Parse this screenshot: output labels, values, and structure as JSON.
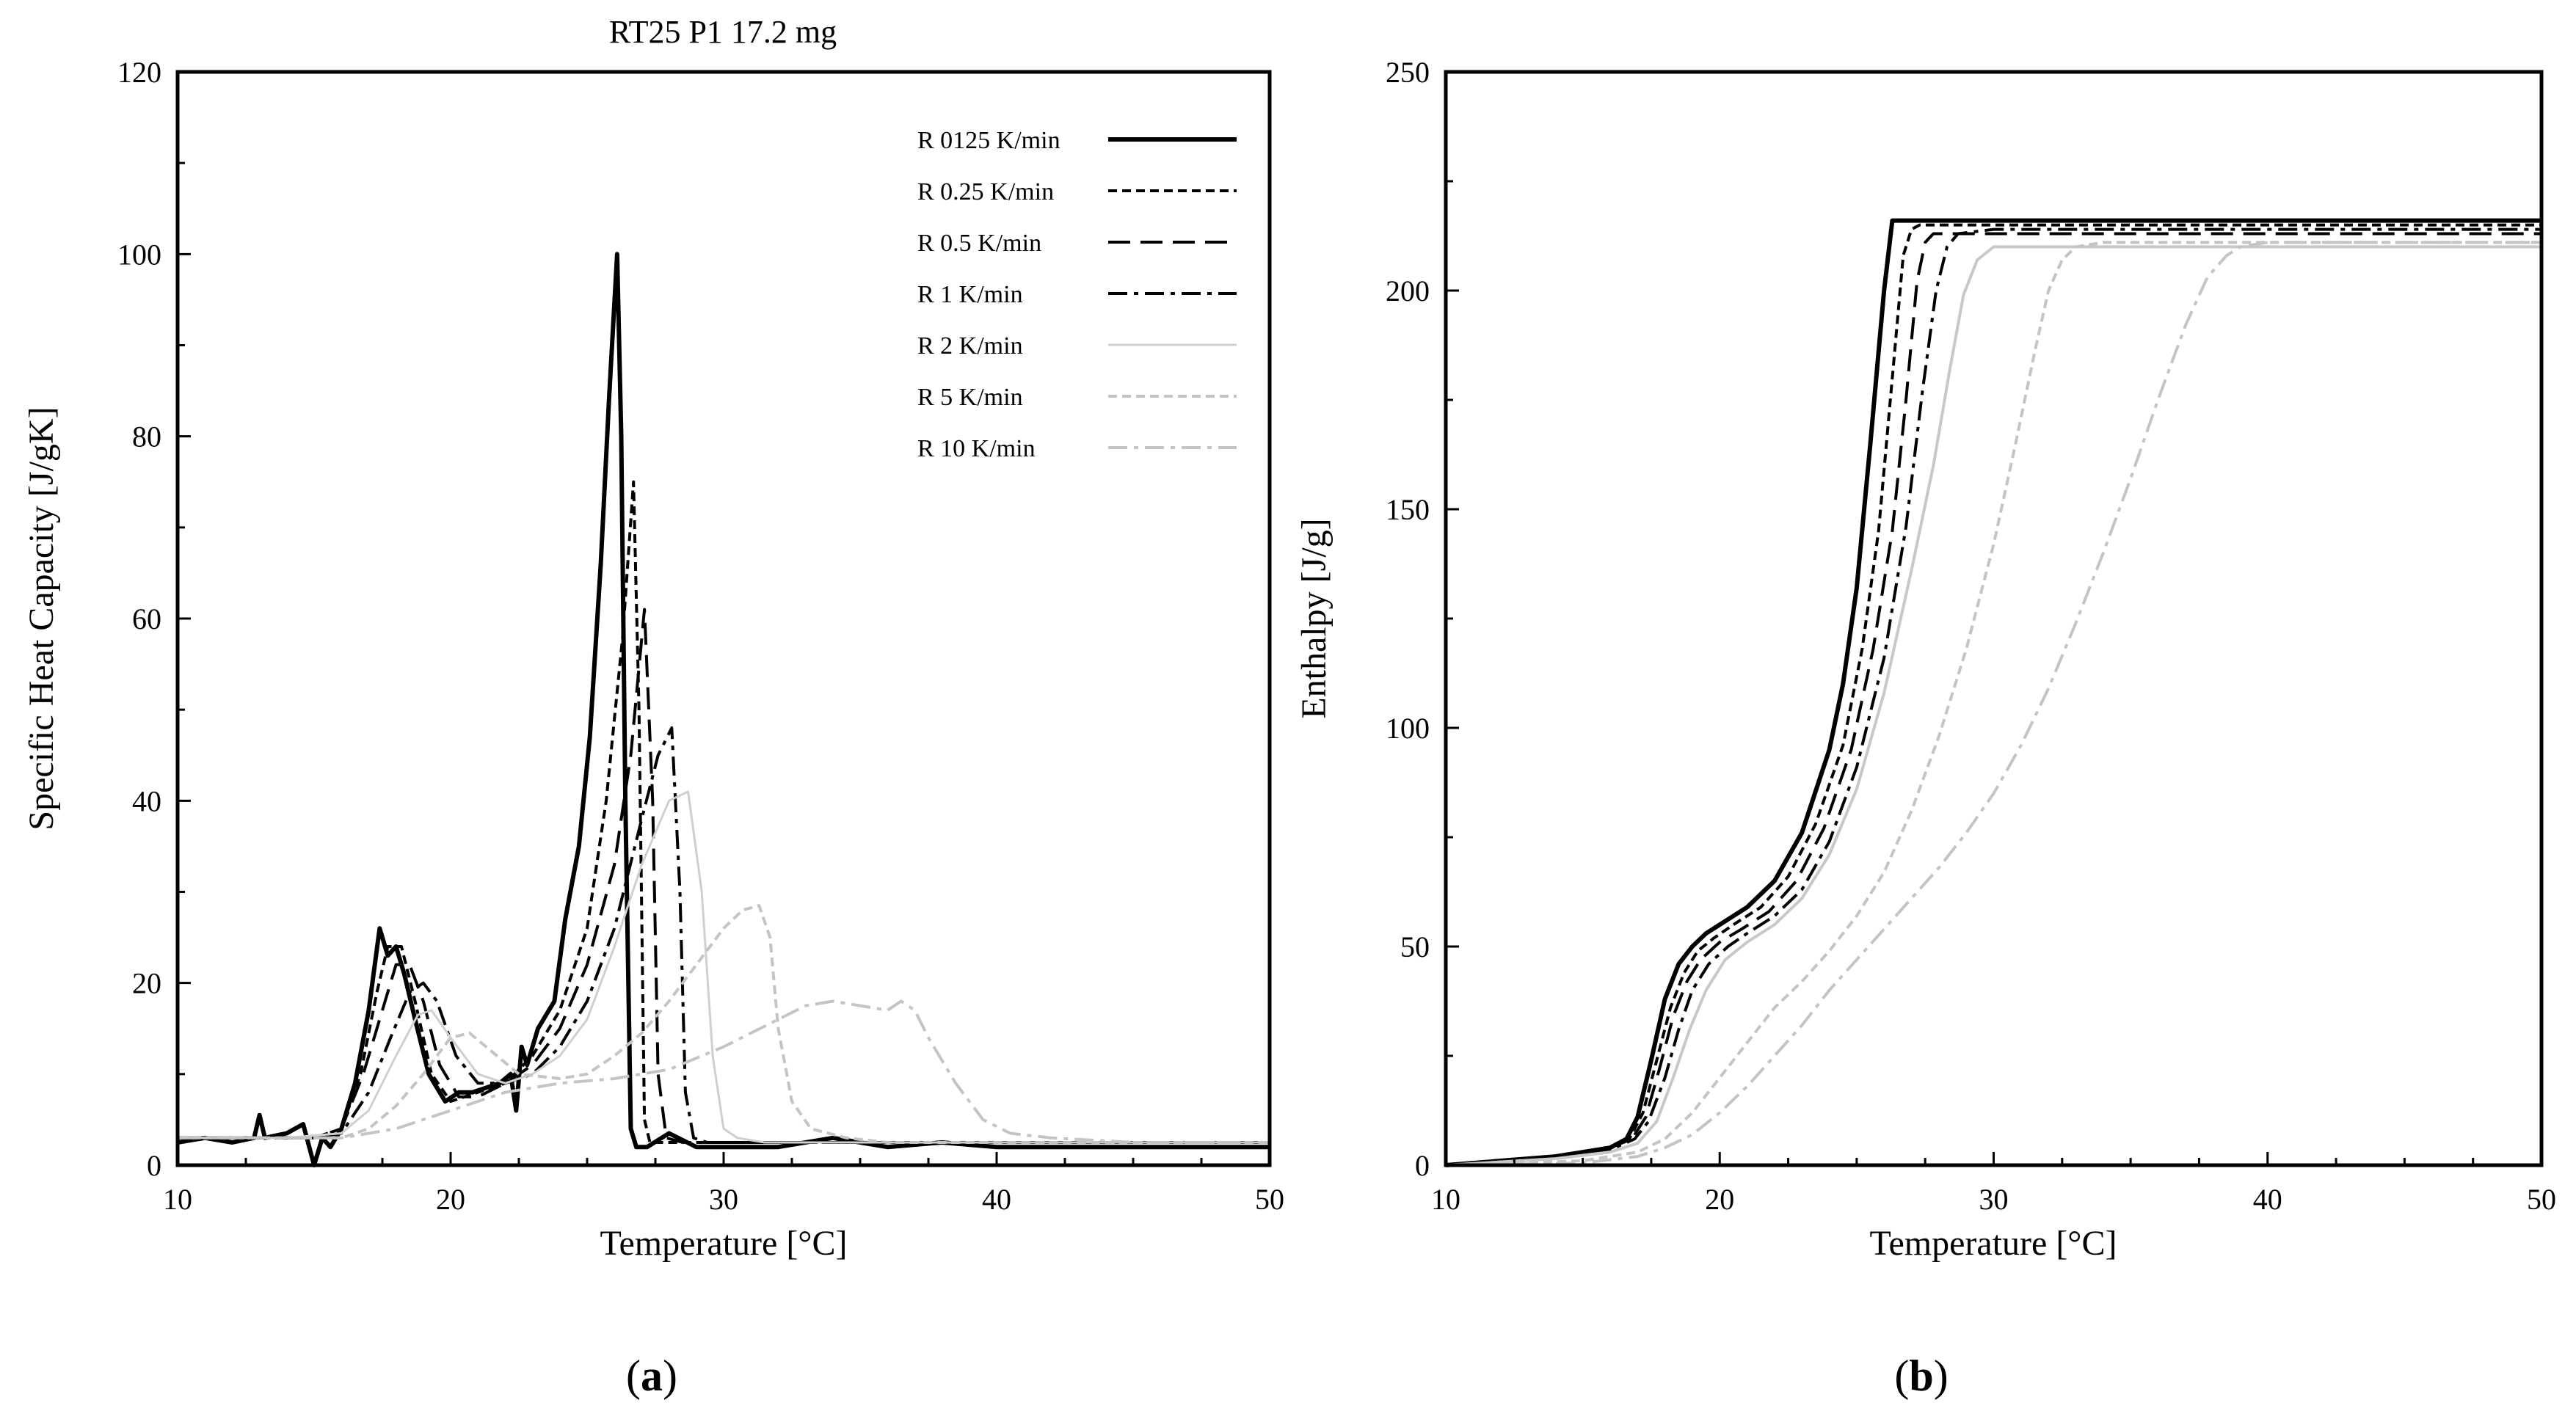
{
  "chart_data": [
    {
      "panel": "(a)",
      "panel_letter": "a",
      "type": "line",
      "title": "RT25 P1   17.2 mg",
      "xlabel": "Temperature [°C]",
      "ylabel": "Specific Heat Capacity [J/gK]",
      "xlim": [
        10,
        50
      ],
      "ylim": [
        0,
        120
      ],
      "xticks": [
        10,
        20,
        30,
        40,
        50
      ],
      "yticks": [
        0,
        20,
        40,
        60,
        80,
        100,
        120
      ],
      "grid": false,
      "legend_position": "top-right",
      "series": [
        {
          "name": "R 0125 K/min",
          "color": "#000000",
          "style": "solid",
          "width": 6,
          "x": [
            10,
            11,
            12,
            12.8,
            13,
            13.2,
            14,
            14.6,
            15,
            15.3,
            15.6,
            16,
            16.5,
            17,
            17.4,
            17.7,
            18,
            18.3,
            18.7,
            19.2,
            19.8,
            20.3,
            20.8,
            21.3,
            21.8,
            22.2,
            22.4,
            22.6,
            22.8,
            23.2,
            23.8,
            24.2,
            24.7,
            25.1,
            25.5,
            25.8,
            26.1,
            26.25,
            26.4,
            26.6,
            26.8,
            27.2,
            28,
            29,
            30,
            32,
            34,
            36,
            38,
            40,
            42,
            44,
            46,
            48,
            50
          ],
          "y": [
            2.5,
            3,
            2.5,
            3,
            5.5,
            3,
            3.5,
            4.5,
            0,
            3,
            2,
            4,
            9,
            17,
            26,
            23,
            24,
            21,
            16,
            10,
            7,
            8,
            8,
            8.5,
            9,
            10,
            6,
            13,
            11,
            15,
            18,
            27,
            35,
            47,
            66,
            84,
            100,
            80,
            40,
            4,
            2,
            2,
            3.5,
            2,
            2,
            2,
            3,
            2,
            2.5,
            2,
            2,
            2,
            2,
            2,
            2
          ]
        },
        {
          "name": "R 0.25 K/min",
          "color": "#000000",
          "style": "dotted",
          "width": 4,
          "x": [
            10,
            13,
            15,
            16,
            16.7,
            17.3,
            17.7,
            18.2,
            18.7,
            19.3,
            20,
            21,
            22,
            23,
            24,
            25,
            25.7,
            26.3,
            26.7,
            26.9,
            27.1,
            27.3,
            28,
            30,
            35,
            40,
            45,
            50
          ],
          "y": [
            3,
            3,
            3,
            4,
            10,
            19,
            24,
            24,
            18,
            10,
            7,
            8,
            9,
            12,
            17,
            26,
            40,
            58,
            75,
            50,
            5,
            2.5,
            2.5,
            2.5,
            2.5,
            2.5,
            2.5,
            2.5
          ]
        },
        {
          "name": "R 0.5 K/min",
          "color": "#000000",
          "style": "dashed",
          "width": 4,
          "x": [
            10,
            13,
            15,
            16,
            16.8,
            17.5,
            18,
            18.5,
            19,
            19.6,
            20.3,
            21,
            22,
            23,
            24,
            25,
            26,
            26.6,
            27.1,
            27.4,
            27.6,
            27.9,
            28.5,
            30,
            35,
            40,
            45,
            50
          ],
          "y": [
            3,
            3,
            3,
            4,
            10,
            17,
            22,
            22,
            18,
            11,
            7.5,
            7.5,
            9,
            11,
            15,
            22,
            33,
            45,
            61,
            40,
            10,
            3,
            2.5,
            2.5,
            2.5,
            2.5,
            2.5,
            2.5
          ]
        },
        {
          "name": "R 1 K/min",
          "color": "#000000",
          "style": "dashdot",
          "width": 4,
          "x": [
            10,
            13,
            15,
            16,
            17,
            17.8,
            18.5,
            19,
            19.5,
            20.2,
            21,
            22,
            23,
            24,
            25,
            26,
            27,
            27.6,
            28.1,
            28.4,
            28.6,
            28.9,
            29.4,
            30,
            35,
            40,
            45,
            50
          ],
          "y": [
            3,
            3,
            3,
            3.5,
            8,
            14,
            19,
            20,
            18,
            12,
            9,
            9,
            10,
            13,
            18,
            26,
            38,
            45,
            48,
            30,
            8,
            3,
            2.5,
            2.5,
            2.5,
            2.5,
            2.5,
            2.5
          ]
        },
        {
          "name": "R 2 K/min",
          "color": "#cfcfcf",
          "style": "solid",
          "width": 3,
          "x": [
            10,
            14,
            16,
            17,
            18,
            18.8,
            19.3,
            20,
            21,
            22,
            23,
            24,
            25,
            26,
            27,
            28,
            28.7,
            29.2,
            29.6,
            30,
            30.5,
            31.5,
            35,
            40,
            45,
            50
          ],
          "y": [
            3,
            3,
            3.5,
            6,
            12,
            16.5,
            17,
            14,
            10,
            9,
            10,
            12,
            16,
            24,
            33,
            40,
            41,
            30,
            12,
            4,
            3,
            2.5,
            2.5,
            2.5,
            2.5,
            2.5
          ]
        },
        {
          "name": "R 5 K/min",
          "color": "#c4c4c4",
          "style": "dotted",
          "width": 4,
          "x": [
            10,
            14,
            16,
            17,
            18,
            19,
            20,
            20.7,
            21.5,
            22.5,
            24,
            25,
            26,
            27,
            28,
            29,
            30,
            30.7,
            31.3,
            31.7,
            32,
            32.5,
            33.2,
            34.5,
            36,
            40,
            45,
            50
          ],
          "y": [
            3,
            3,
            3,
            4,
            6.5,
            10,
            14,
            14.5,
            12.5,
            10,
            9.5,
            10,
            12,
            14.5,
            18,
            22,
            26,
            28,
            28.5,
            25,
            15,
            7,
            4,
            3,
            2.5,
            2.5,
            2.5,
            2.5
          ]
        },
        {
          "name": "R 10 K/min",
          "color": "#c4c4c4",
          "style": "dashdot",
          "width": 4,
          "x": [
            10,
            14,
            16,
            18,
            20,
            22,
            24,
            26,
            28,
            30,
            32,
            33,
            34,
            35,
            36,
            36.5,
            37,
            37.5,
            38.5,
            39.5,
            40.5,
            42,
            45,
            50
          ],
          "y": [
            3,
            3,
            3,
            4,
            6,
            8,
            9,
            9.5,
            10.5,
            13,
            16,
            17.5,
            18,
            17.5,
            17,
            18,
            17,
            14,
            9,
            5,
            3.5,
            3,
            2.5,
            2.5
          ]
        }
      ]
    },
    {
      "panel": "(b)",
      "panel_letter": "b",
      "type": "line",
      "title": "",
      "xlabel": "Temperature [°C]",
      "ylabel": "Enthalpy [J/g]",
      "xlim": [
        10,
        50
      ],
      "ylim": [
        0,
        250
      ],
      "xticks": [
        10,
        20,
        30,
        40,
        50
      ],
      "yticks": [
        0,
        50,
        100,
        150,
        200,
        250
      ],
      "grid": false,
      "series": [
        {
          "name": "R 0125 K/min",
          "color": "#000000",
          "style": "solid",
          "width": 6,
          "x": [
            10,
            14,
            16,
            16.6,
            17,
            17.5,
            18,
            18.5,
            19,
            19.5,
            20,
            21,
            22,
            23,
            24,
            24.5,
            25,
            25.5,
            26,
            26.3,
            26.5,
            28,
            35,
            40,
            45,
            50
          ],
          "y": [
            0,
            2,
            4,
            6,
            11,
            24,
            38,
            46,
            50,
            53,
            55,
            59,
            65,
            76,
            95,
            110,
            132,
            165,
            200,
            216,
            216,
            216,
            216,
            216,
            216,
            216
          ]
        },
        {
          "name": "R 0.25 K/min",
          "color": "#000000",
          "style": "dotted",
          "width": 4,
          "x": [
            10,
            14,
            16,
            16.7,
            17.2,
            17.7,
            18.2,
            18.7,
            19.2,
            19.8,
            20.5,
            21.5,
            22.5,
            23.5,
            24.5,
            25.2,
            25.8,
            26.3,
            26.7,
            27,
            27.3,
            30,
            35,
            40,
            45,
            50
          ],
          "y": [
            0,
            2,
            4,
            6,
            12,
            24,
            36,
            44,
            49,
            52,
            55,
            59,
            66,
            78,
            96,
            118,
            145,
            180,
            208,
            214,
            215,
            215,
            215,
            215,
            215,
            215
          ]
        },
        {
          "name": "R 0.5 K/min",
          "color": "#000000",
          "style": "dashed",
          "width": 4,
          "x": [
            10,
            14,
            16,
            16.8,
            17.3,
            17.8,
            18.3,
            18.8,
            19.3,
            20,
            20.8,
            21.8,
            22.8,
            23.8,
            24.8,
            25.6,
            26.3,
            26.8,
            27.2,
            27.5,
            27.8,
            30,
            35,
            40,
            45,
            50
          ],
          "y": [
            0,
            2,
            4,
            6,
            11,
            22,
            34,
            42,
            47,
            51,
            54,
            58,
            65,
            77,
            95,
            118,
            145,
            175,
            202,
            211,
            213,
            213,
            213,
            213,
            213,
            213
          ]
        },
        {
          "name": "R 1 K/min",
          "color": "#000000",
          "style": "dashdot",
          "width": 4,
          "x": [
            10,
            14,
            16,
            16.9,
            17.4,
            18,
            18.5,
            19,
            19.6,
            20.3,
            21,
            22,
            23,
            24,
            25,
            26,
            26.8,
            27.4,
            27.9,
            28.3,
            28.7,
            30,
            35,
            40,
            45,
            50
          ],
          "y": [
            0,
            2,
            3.5,
            6,
            10,
            20,
            31,
            40,
            46,
            50,
            53,
            57,
            63,
            74,
            91,
            116,
            146,
            177,
            200,
            210,
            213,
            214,
            214,
            214,
            214,
            214
          ]
        },
        {
          "name": "R 2 K/min",
          "color": "#c8c8c8",
          "style": "solid",
          "width": 4,
          "x": [
            10,
            14,
            16,
            17,
            17.7,
            18.3,
            18.9,
            19.5,
            20.2,
            21,
            22,
            23,
            24,
            25,
            26,
            27,
            27.8,
            28.4,
            28.9,
            29.4,
            30,
            32,
            35,
            40,
            45,
            50
          ],
          "y": [
            0,
            1.5,
            3,
            5,
            10,
            20,
            31,
            40,
            47,
            51,
            55,
            61,
            71,
            86,
            108,
            136,
            160,
            182,
            199,
            207,
            210,
            210,
            210,
            210,
            210,
            210
          ]
        },
        {
          "name": "R 5 K/min",
          "color": "#c4c4c4",
          "style": "dotted",
          "width": 4,
          "x": [
            10,
            15,
            17,
            18,
            19,
            20,
            21,
            22,
            23,
            24,
            25,
            26,
            27,
            28,
            29,
            30,
            30.8,
            31.5,
            32,
            32.5,
            33,
            34,
            36,
            40,
            45,
            50
          ],
          "y": [
            0,
            1,
            3,
            6,
            12,
            20,
            28,
            36,
            42,
            49,
            57,
            67,
            81,
            98,
            118,
            142,
            165,
            186,
            200,
            207,
            210,
            211,
            211,
            211,
            211,
            211
          ]
        },
        {
          "name": "R 10 K/min",
          "color": "#c4c4c4",
          "style": "dashdot",
          "width": 4,
          "x": [
            10,
            15,
            17,
            18,
            19,
            20,
            21,
            22,
            23,
            24,
            25,
            26,
            27,
            28,
            29,
            30,
            31,
            32,
            33,
            34,
            35,
            36,
            37,
            37.8,
            38.5,
            39,
            40,
            45,
            50
          ],
          "y": [
            0,
            0.5,
            2,
            4,
            7,
            12,
            18,
            25,
            32,
            40,
            47,
            54,
            61,
            68,
            76,
            85,
            96,
            109,
            124,
            140,
            157,
            175,
            192,
            203,
            208,
            210,
            211,
            211,
            211
          ]
        }
      ]
    }
  ]
}
